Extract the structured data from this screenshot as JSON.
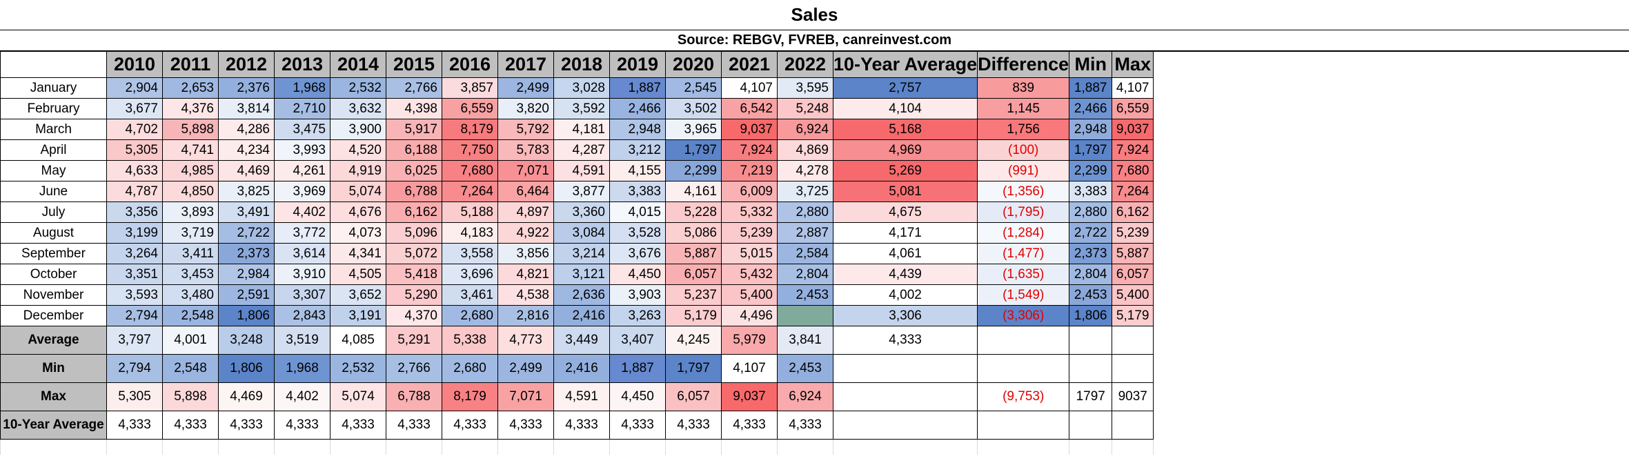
{
  "title": "Sales",
  "source": "Source: REBGV, FVREB, canreinvest.com",
  "years": [
    "2010",
    "2011",
    "2012",
    "2013",
    "2014",
    "2015",
    "2016",
    "2017",
    "2018",
    "2019",
    "2020",
    "2021",
    "2022"
  ],
  "extra_headers": [
    "10-Year Average",
    "Difference",
    "Min",
    "Max"
  ],
  "months": [
    {
      "name": "January",
      "values": [
        "2,904",
        "2,653",
        "2,376",
        "1,968",
        "2,532",
        "2,766",
        "3,857",
        "2,499",
        "3,028",
        "1,887",
        "2,545",
        "4,107",
        "3,595"
      ],
      "avg": "2,757",
      "diff": "839",
      "diff_neg": false,
      "min": "1,887",
      "max": "4,107",
      "colors": [
        "#aec3e6",
        "#a0b9e2",
        "#93afdd",
        "#6f94d2",
        "#9ab5e0",
        "#a9c0e4",
        "#fadcde",
        "#9cb6e1",
        "#c6d6ee",
        "#6689cf",
        "#a2bae3",
        "#ffffff",
        "#e2eaf6"
      ],
      "avg_color": "#5b84c9",
      "diff_color": "#f79b9d",
      "min_color": "#5b84c9",
      "max_color": "#ffffff"
    },
    {
      "name": "February",
      "values": [
        "3,677",
        "4,376",
        "3,814",
        "2,710",
        "3,632",
        "4,398",
        "6,559",
        "3,820",
        "3,592",
        "2,466",
        "3,502",
        "6,542",
        "5,248"
      ],
      "avg": "4,104",
      "diff": "1,145",
      "diff_neg": false,
      "min": "2,466",
      "max": "6,559",
      "colors": [
        "#dde6f4",
        "#fde6e7",
        "#e7eef8",
        "#a5bde3",
        "#dae4f3",
        "#fde5e6",
        "#f8a1a3",
        "#e8eff8",
        "#d6e1f2",
        "#99b4e0",
        "#d0dcf0",
        "#f8a2a4",
        "#fbc7c9"
      ],
      "avg_color": "#fdeaeb",
      "diff_color": "#f89ea0",
      "min_color": "#6f94d2",
      "max_color": "#f8a1a3"
    },
    {
      "name": "March",
      "values": [
        "4,702",
        "5,898",
        "4,286",
        "3,475",
        "3,900",
        "5,917",
        "8,179",
        "5,792",
        "4,181",
        "2,948",
        "3,965",
        "9,037",
        "6,924"
      ],
      "avg": "5,168",
      "diff": "1,756",
      "diff_neg": false,
      "min": "2,948",
      "max": "9,037",
      "colors": [
        "#fcdcdd",
        "#f8b5b7",
        "#fdeaeb",
        "#cfdbef",
        "#ebf1f9",
        "#f8b4b6",
        "#f77b7e",
        "#f9b8ba",
        "#fdeeef",
        "#b1c6e7",
        "#eef3fa",
        "#f8696b",
        "#f8999b"
      ],
      "avg_color": "#f66a6d",
      "diff_color": "#f8787b",
      "min_color": "#90acdc",
      "max_color": "#f66a6d"
    },
    {
      "name": "April",
      "values": [
        "5,305",
        "4,741",
        "4,234",
        "3,993",
        "4,520",
        "6,188",
        "7,750",
        "5,783",
        "4,287",
        "3,212",
        "1,797",
        "7,924",
        "4,869"
      ],
      "avg": "4,969",
      "diff": "(100)",
      "diff_neg": true,
      "min": "1,797",
      "max": "7,924",
      "colors": [
        "#fbc8ca",
        "#fcdcdd",
        "#fdecec",
        "#f1f5fb",
        "#fde2e3",
        "#f9acae",
        "#f78082",
        "#f9b9bb",
        "#fde9ea",
        "#c0d1ec",
        "#5b84c9",
        "#f77d80",
        "#fcd9da"
      ],
      "avg_color": "#f78e91",
      "diff_color": "#fad3d4",
      "min_color": "#5b84c9",
      "max_color": "#f77d80"
    },
    {
      "name": "May",
      "values": [
        "4,633",
        "4,985",
        "4,469",
        "4,261",
        "4,919",
        "6,025",
        "7,680",
        "7,071",
        "4,591",
        "4,155",
        "2,299",
        "7,219",
        "4,278"
      ],
      "avg": "5,269",
      "diff": "(991)",
      "diff_neg": true,
      "min": "2,299",
      "max": "7,680",
      "colors": [
        "#fddfe0",
        "#fcd5d7",
        "#fde4e5",
        "#fdebeb",
        "#fcd8d9",
        "#f9b1b3",
        "#f78184",
        "#f89195",
        "#fde0e1",
        "#fdeeee",
        "#8aa7da",
        "#f88d90",
        "#fde9ea"
      ],
      "avg_color": "#f66a6d",
      "diff_color": "#fde9ea",
      "min_color": "#6f94d2",
      "max_color": "#f78184"
    },
    {
      "name": "June",
      "values": [
        "4,787",
        "4,850",
        "3,825",
        "3,969",
        "5,074",
        "6,788",
        "7,264",
        "6,464",
        "3,877",
        "3,383",
        "4,161",
        "6,009",
        "3,725"
      ],
      "avg": "5,081",
      "diff": "(1,356)",
      "diff_neg": true,
      "min": "3,383",
      "max": "7,264",
      "colors": [
        "#fcdbdc",
        "#fcd9da",
        "#e8eff8",
        "#f0f4fa",
        "#fcd2d3",
        "#f89b9e",
        "#f78b8e",
        "#f9a3a5",
        "#eaf0f9",
        "#ccd9ef",
        "#fdeeef",
        "#f9b2b4",
        "#e3ebf7"
      ],
      "avg_color": "#f77276",
      "diff_color": "#f4f7fc",
      "min_color": "#dae4f3",
      "max_color": "#f78b8e"
    },
    {
      "name": "July",
      "values": [
        "3,356",
        "3,893",
        "3,491",
        "4,402",
        "4,676",
        "6,162",
        "5,188",
        "4,897",
        "3,360",
        "4,015",
        "5,228",
        "5,332",
        "2,880"
      ],
      "avg": "4,675",
      "diff": "(1,795)",
      "diff_neg": true,
      "min": "2,880",
      "max": "6,162",
      "colors": [
        "#cad8ee",
        "#eaf0f9",
        "#d2def1",
        "#fde5e6",
        "#fdddde",
        "#f9adaf",
        "#fbcccd",
        "#fcd7d8",
        "#cad8ee",
        "#f4f7fc",
        "#fbcacc",
        "#fbc6c8",
        "#aec3e6"
      ],
      "avg_color": "#fcdadb",
      "diff_color": "#e4ebf7",
      "min_color": "#a5bde3",
      "max_color": "#f8b2b4"
    },
    {
      "name": "August",
      "values": [
        "3,199",
        "3,719",
        "2,722",
        "3,772",
        "4,073",
        "5,096",
        "4,183",
        "4,922",
        "3,084",
        "3,528",
        "5,086",
        "5,239",
        "2,887"
      ],
      "avg": "4,171",
      "diff": "(1,284)",
      "diff_neg": true,
      "min": "2,722",
      "max": "5,239",
      "colors": [
        "#c0d1ec",
        "#e3ebf7",
        "#a5bde3",
        "#e6edf8",
        "#fdf1f1",
        "#fbcfd1",
        "#fdeeee",
        "#fcd7d8",
        "#b8cbe9",
        "#d4dff2",
        "#fbd0d1",
        "#fbcacc",
        "#aec3e6"
      ],
      "avg_color": "#ffffff",
      "diff_color": "#f5f8fc",
      "min_color": "#93afdd",
      "max_color": "#fbcacc"
    },
    {
      "name": "September",
      "values": [
        "3,264",
        "3,411",
        "2,373",
        "3,614",
        "4,341",
        "5,072",
        "3,558",
        "3,856",
        "3,214",
        "3,676",
        "5,887",
        "5,015",
        "2,584"
      ],
      "avg": "4,061",
      "diff": "(1,477)",
      "diff_neg": true,
      "min": "2,373",
      "max": "5,887",
      "colors": [
        "#c4d4ed",
        "#ccd9ef",
        "#8aa7da",
        "#d9e3f3",
        "#fde8e9",
        "#fbd0d1",
        "#d6e1f2",
        "#e9eff9",
        "#c1d2ec",
        "#dde6f4",
        "#f8b5b7",
        "#fcd3d4",
        "#9cb6e1"
      ],
      "avg_color": "#ffffff",
      "diff_color": "#eff3fa",
      "min_color": "#7c9ed7",
      "max_color": "#f8b5b7"
    },
    {
      "name": "October",
      "values": [
        "3,351",
        "3,453",
        "2,984",
        "3,910",
        "4,505",
        "5,418",
        "3,696",
        "4,821",
        "3,121",
        "4,450",
        "6,057",
        "5,432",
        "2,804"
      ],
      "avg": "4,439",
      "diff": "(1,635)",
      "diff_neg": true,
      "min": "2,804",
      "max": "6,057",
      "colors": [
        "#c9d7ee",
        "#d0dcf0",
        "#b1c6e7",
        "#ecf1f9",
        "#fde2e3",
        "#fbc0c2",
        "#dee7f5",
        "#fcd9da",
        "#bccfeb",
        "#fde4e5",
        "#f9afb1",
        "#fbc0c2",
        "#a8bfe4"
      ],
      "avg_color": "#fde9ea",
      "diff_color": "#e9eff8",
      "min_color": "#a0b9e2",
      "max_color": "#f9afb1"
    },
    {
      "name": "November",
      "values": [
        "3,593",
        "3,480",
        "2,591",
        "3,307",
        "3,652",
        "5,290",
        "3,461",
        "4,538",
        "2,636",
        "3,903",
        "5,237",
        "5,400",
        "2,453"
      ],
      "avg": "4,002",
      "diff": "(1,549)",
      "diff_neg": true,
      "min": "2,453",
      "max": "5,400",
      "colors": [
        "#d7e2f3",
        "#d1ddf0",
        "#9cb6e1",
        "#c7d6ee",
        "#dae4f3",
        "#fbc9cb",
        "#d0dcf0",
        "#fde1e2",
        "#9fb8e2",
        "#ebf1f9",
        "#fbcbcd",
        "#fbc4c6",
        "#93afdd"
      ],
      "avg_color": "#ffffff",
      "diff_color": "#ecf1f9",
      "min_color": "#8aa7da",
      "max_color": "#fbc4c6"
    },
    {
      "name": "December",
      "values": [
        "2,794",
        "2,548",
        "1,806",
        "2,843",
        "3,191",
        "4,370",
        "2,680",
        "2,816",
        "2,416",
        "3,263",
        "5,179",
        "4,496",
        ""
      ],
      "avg": "3,306",
      "diff": "(3,306)",
      "diff_neg": true,
      "min": "1,806",
      "max": "5,179",
      "colors": [
        "#a8bfe4",
        "#9ab5e0",
        "#5b84c9",
        "#aac1e5",
        "#c0d1ec",
        "#fde7e8",
        "#a1bae3",
        "#a9c0e4",
        "#93afdd",
        "#c4d4ed",
        "#fbcdcf",
        "#fde2e3",
        "#7faa9c"
      ],
      "avg_color": "#c4d4ed",
      "diff_color": "#5b84c9",
      "min_color": "#5b84c9",
      "max_color": "#fbcdcf"
    }
  ],
  "stats": [
    {
      "label": "Average",
      "values": [
        "3,797",
        "4,001",
        "3,248",
        "3,519",
        "4,085",
        "5,291",
        "5,338",
        "4,773",
        "3,449",
        "3,407",
        "4,245",
        "5,979",
        "3,841"
      ],
      "avg": "4,333",
      "diff": "",
      "min": "",
      "max": "",
      "colors": [
        "#dde6f4",
        "#f2f6fb",
        "#b9cce9",
        "#d3def1",
        "#ffffff",
        "#fbc9cb",
        "#fbc7c9",
        "#fddfe0",
        "#cedaef",
        "#cbd9ef",
        "#fdf2f2",
        "#f9a9ab",
        "#e3eaf6"
      ]
    },
    {
      "label": "Min",
      "values": [
        "2,794",
        "2,548",
        "1,806",
        "1,968",
        "2,532",
        "2,766",
        "2,680",
        "2,499",
        "2,416",
        "1,887",
        "1,797",
        "4,107",
        "2,453"
      ],
      "avg": "",
      "diff": "",
      "min": "",
      "max": "",
      "colors": [
        "#a8bfe4",
        "#9ab5e0",
        "#5b84c9",
        "#6f94d2",
        "#9ab5e0",
        "#a8bfe4",
        "#a1bae3",
        "#9cb6e1",
        "#93afdd",
        "#6689cf",
        "#5b84c9",
        "#ffffff",
        "#93afdd"
      ]
    },
    {
      "label": "Max",
      "values": [
        "5,305",
        "5,898",
        "4,469",
        "4,402",
        "5,074",
        "6,788",
        "8,179",
        "7,071",
        "4,591",
        "4,450",
        "6,057",
        "9,037",
        "6,924"
      ],
      "avg": "",
      "diff": "(9,753)",
      "diff_neg": true,
      "min": "1797",
      "max": "9037",
      "colors": [
        "#fdeeee",
        "#fbd8d9",
        "#fdf4f4",
        "#fdf6f6",
        "#fde4e5",
        "#f9b0b2",
        "#f88184",
        "#f9a2a4",
        "#fdf1f1",
        "#fdf5f5",
        "#fac1c3",
        "#f8696b",
        "#f9aaac"
      ]
    },
    {
      "label": "10-Year Average",
      "values": [
        "4,333",
        "4,333",
        "4,333",
        "4,333",
        "4,333",
        "4,333",
        "4,333",
        "4,333",
        "4,333",
        "4,333",
        "4,333",
        "4,333",
        "4,333"
      ],
      "avg": "",
      "diff": "",
      "min": "",
      "max": "",
      "colors": [
        "#ffffff",
        "#ffffff",
        "#ffffff",
        "#ffffff",
        "#ffffff",
        "#ffffff",
        "#ffffff",
        "#ffffff",
        "#ffffff",
        "#ffffff",
        "#ffffff",
        "#ffffff",
        "#ffffff"
      ]
    }
  ]
}
